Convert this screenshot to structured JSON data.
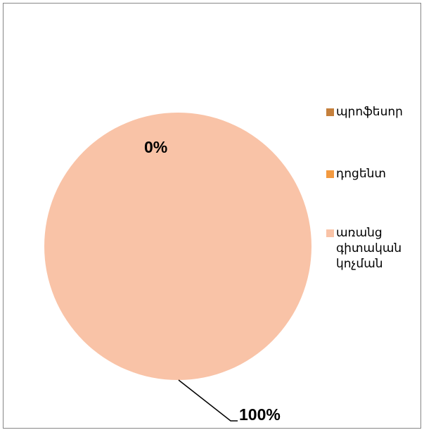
{
  "chart_data": {
    "type": "pie",
    "title": "",
    "categories": [
      "պրոֆեսոր",
      "դոցենտ",
      "առանց գիտական կոչման"
    ],
    "values": [
      0,
      0,
      100
    ],
    "data_labels": [
      "0%",
      "0%",
      "100%"
    ],
    "colors": [
      "#C5803C",
      "#F39A40",
      "#F9C3A7"
    ],
    "legend_position": "right",
    "grid": false
  },
  "legend": {
    "items": [
      {
        "label": "պրոֆեսոր",
        "color": "#C5803C"
      },
      {
        "label": "դոցենտ",
        "color": "#F39A40"
      },
      {
        "label": "առանց գիտական կոչման",
        "color": "#F9C3A7"
      }
    ]
  },
  "labels": {
    "top": "0%",
    "bottom": "100%"
  }
}
